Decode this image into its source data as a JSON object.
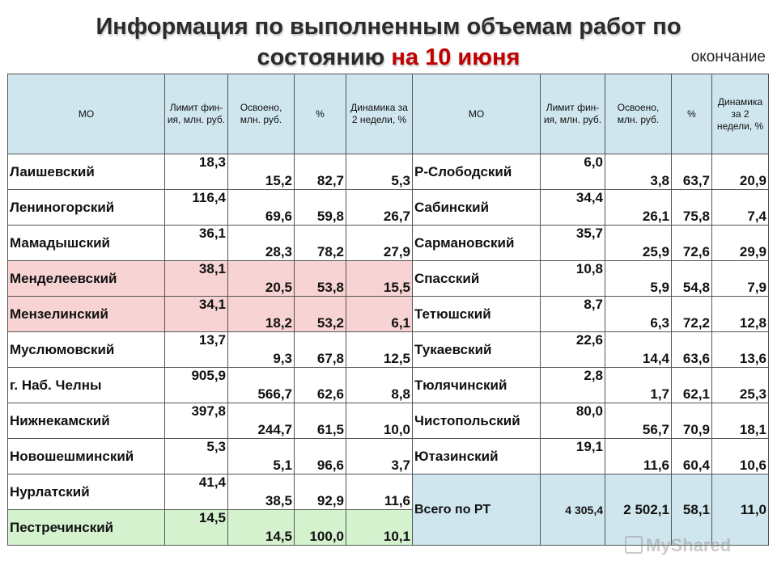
{
  "header": {
    "title_line1": "Информация по выполненным объемам работ по",
    "title_line2_plain": "состоянию ",
    "title_line2_red": "на 10 июня",
    "note": "окончание"
  },
  "columns": {
    "mo": "МО",
    "limit": "Лимит фин-ия, млн. руб.",
    "osvoeno": "Освоено, млн. руб.",
    "pct": "%",
    "dyn": "Динамика за 2 недели, %"
  },
  "left_rows": [
    {
      "name": "Лаишевский",
      "limit": "18,3",
      "osvoeno": "15,2",
      "pct": "82,7",
      "dyn": "5,3"
    },
    {
      "name": "Лениногорский",
      "limit": "116,4",
      "osvoeno": "69,6",
      "pct": "59,8",
      "dyn": "26,7"
    },
    {
      "name": "Мамадышский",
      "limit": "36,1",
      "osvoeno": "28,3",
      "pct": "78,2",
      "dyn": "27,9"
    },
    {
      "name": "Менделеевский",
      "limit": "38,1",
      "osvoeno": "20,5",
      "pct": "53,8",
      "dyn": "15,5"
    },
    {
      "name": "Мензелинский",
      "limit": "34,1",
      "osvoeno": "18,2",
      "pct": "53,2",
      "dyn": "6,1"
    },
    {
      "name": "Муслюмовский",
      "limit": "13,7",
      "osvoeno": "9,3",
      "pct": "67,8",
      "dyn": "12,5"
    },
    {
      "name": "г. Наб. Челны",
      "limit": "905,9",
      "osvoeno": "566,7",
      "pct": "62,6",
      "dyn": "8,8"
    },
    {
      "name": "Нижнекамский",
      "limit": "397,8",
      "osvoeno": "244,7",
      "pct": "61,5",
      "dyn": "10,0"
    },
    {
      "name": "Новошешминский",
      "limit": "5,3",
      "osvoeno": "5,1",
      "pct": "96,6",
      "dyn": "3,7"
    },
    {
      "name": "Нурлатский",
      "limit": "41,4",
      "osvoeno": "38,5",
      "pct": "92,9",
      "dyn": "11,6"
    },
    {
      "name": "Пестречинский",
      "limit": "14,5",
      "osvoeno": "14,5",
      "pct": "100,0",
      "dyn": "10,1"
    }
  ],
  "right_rows": [
    {
      "name": "Р-Слободский",
      "limit": "6,0",
      "osvoeno": "3,8",
      "pct": "63,7",
      "dyn": "20,9"
    },
    {
      "name": "Сабинский",
      "limit": "34,4",
      "osvoeno": "26,1",
      "pct": "75,8",
      "dyn": "7,4"
    },
    {
      "name": "Сармановский",
      "limit": "35,7",
      "osvoeno": "25,9",
      "pct": "72,6",
      "dyn": "29,9"
    },
    {
      "name": "Спасский",
      "limit": "10,8",
      "osvoeno": "5,9",
      "pct": "54,8",
      "dyn": "7,9"
    },
    {
      "name": "Тетюшский",
      "limit": "8,7",
      "osvoeno": "6,3",
      "pct": "72,2",
      "dyn": "12,8"
    },
    {
      "name": "Тукаевский",
      "limit": "22,6",
      "osvoeno": "14,4",
      "pct": "63,6",
      "dyn": "13,6"
    },
    {
      "name": "Тюлячинский",
      "limit": "2,8",
      "osvoeno": "1,7",
      "pct": "62,1",
      "dyn": "25,3"
    },
    {
      "name": "Чистопольский",
      "limit": "80,0",
      "osvoeno": "56,7",
      "pct": "70,9",
      "dyn": "18,1"
    },
    {
      "name": "Ютазинский",
      "limit": "19,1",
      "osvoeno": "11,6",
      "pct": "60,4",
      "dyn": "10,6"
    }
  ],
  "total": {
    "name": "Всего по РТ",
    "limit": "4 305,4",
    "osvoeno": "2 502,1",
    "pct": "58,1",
    "dyn": "11,0"
  },
  "watermark": "MyShared",
  "colors": {
    "header_bg": "#cfe6ee",
    "pink_bg": "#f8d3d3",
    "green_bg": "#d5f2cf",
    "dyn_text": "#00a000",
    "accent_red": "#c00000"
  }
}
